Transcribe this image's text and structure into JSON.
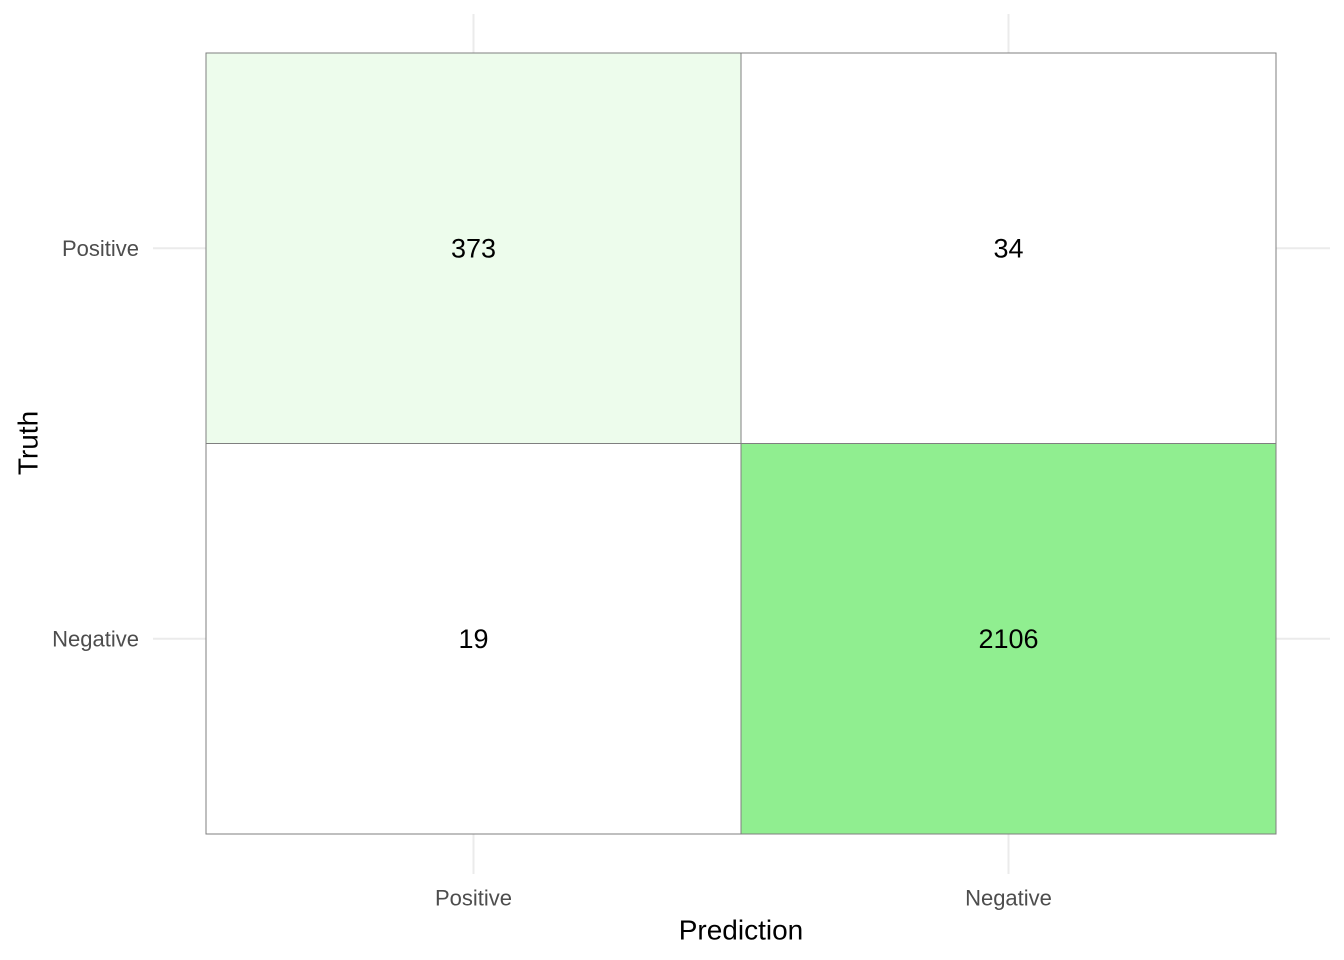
{
  "chart_data": {
    "type": "heatmap",
    "xlabel": "Prediction",
    "ylabel": "Truth",
    "x_categories": [
      "Positive",
      "Negative"
    ],
    "y_categories": [
      "Positive",
      "Negative"
    ],
    "cells": [
      {
        "truth": "Positive",
        "prediction": "Positive",
        "value": 373,
        "color": "#edfcec"
      },
      {
        "truth": "Positive",
        "prediction": "Negative",
        "value": 34,
        "color": "#ffffff"
      },
      {
        "truth": "Negative",
        "prediction": "Positive",
        "value": 19,
        "color": "#ffffff"
      },
      {
        "truth": "Negative",
        "prediction": "Negative",
        "value": 2106,
        "color": "#90ee90"
      }
    ],
    "legend": "none",
    "grid": true,
    "colors": {
      "low": "#ffffff",
      "high": "#90ee90",
      "cell_border": "#7f7f7f",
      "gridline": "#ebebeb"
    }
  }
}
